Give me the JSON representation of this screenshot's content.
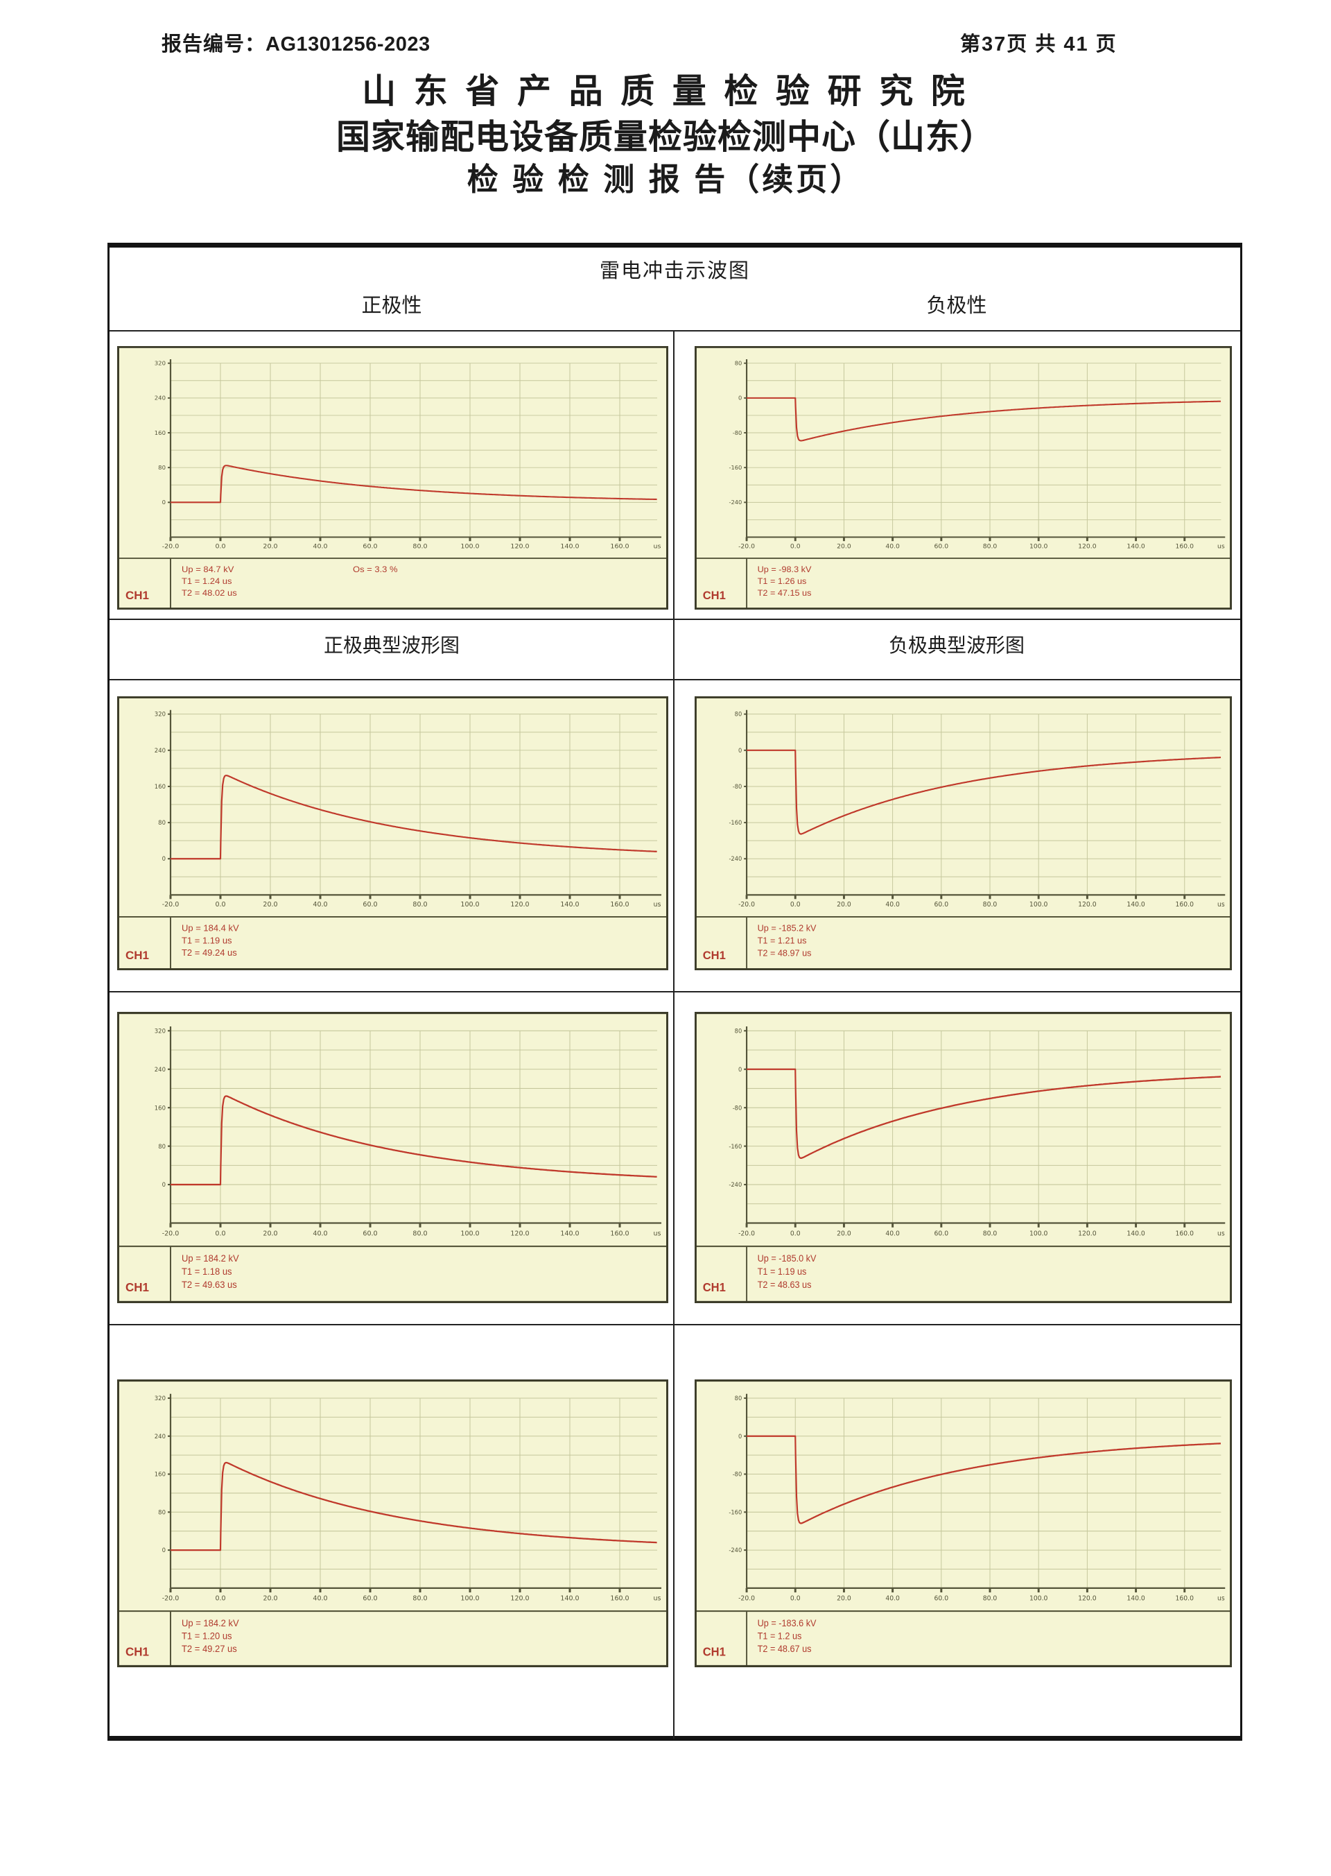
{
  "header": {
    "report_no_label": "报告编号：",
    "report_no": "AG1301256-2023",
    "page_info": "第37页  共 41 页"
  },
  "title": {
    "line1": "山 东 省 产 品 质 量 检 验 研 究 院",
    "line2": "国家输配电设备质量检验检测中心（山东）",
    "line3": "检 验 检 测 报 告（续页）"
  },
  "table": {
    "title": "雷电冲击示波图",
    "col_positive": "正极性",
    "col_negative": "负极性",
    "label_positive_typical": "正极典型波形图",
    "label_negative_typical": "负极典型波形图"
  },
  "axis": {
    "x_ticks": [
      "-20.0",
      "0.0",
      "20.0",
      "40.0",
      "60.0",
      "80.0",
      "100.0",
      "120.0",
      "140.0",
      "160.0"
    ],
    "x_unit": "us",
    "y_ticks_positive": [
      "320",
      "240",
      "160",
      "80",
      "0"
    ],
    "y_ticks_negative": [
      "80",
      "0",
      "-80",
      "-160",
      "-240"
    ]
  },
  "colors": {
    "waveform": "#c0392b",
    "panel_bg": "#f5f5d4",
    "grid": "#c5c79c",
    "axis": "#55553a",
    "frame": "#3d3d2a",
    "info_text": "#b03a2e"
  },
  "chart_data": {
    "type": "line",
    "note": "eight lightning impulse oscillograms, x axis -20 to 160 us, y grid 40 kV per division"
  },
  "charts": [
    {
      "channel": "CH1",
      "polarity": "positive",
      "up_label": "Up = 84.7 kV",
      "t1_label": "T1 = 1.24 us",
      "t2_label": "T2 = 48.02 us",
      "overshoot_label": "Os = 3.3 %",
      "up_kv": 84.7,
      "t2_us": 48.02
    },
    {
      "channel": "CH1",
      "polarity": "negative",
      "up_label": "Up = -98.3 kV",
      "t1_label": "T1 = 1.26 us",
      "t2_label": "T2 = 47.15 us",
      "overshoot_label": null,
      "up_kv": -98.3,
      "t2_us": 47.15
    },
    {
      "channel": "CH1",
      "polarity": "positive",
      "up_label": "Up = 184.4 kV",
      "t1_label": "T1 = 1.19 us",
      "t2_label": "T2 = 49.24 us",
      "overshoot_label": null,
      "up_kv": 184.4,
      "t2_us": 49.24
    },
    {
      "channel": "CH1",
      "polarity": "negative",
      "up_label": "Up = -185.2 kV",
      "t1_label": "T1 = 1.21 us",
      "t2_label": "T2 = 48.97 us",
      "overshoot_label": null,
      "up_kv": -185.2,
      "t2_us": 48.97
    },
    {
      "channel": "CH1",
      "polarity": "positive",
      "up_label": "Up = 184.2 kV",
      "t1_label": "T1 = 1.18 us",
      "t2_label": "T2 = 49.63 us",
      "overshoot_label": null,
      "up_kv": 184.2,
      "t2_us": 49.63
    },
    {
      "channel": "CH1",
      "polarity": "negative",
      "up_label": "Up = -185.0 kV",
      "t1_label": "T1 = 1.19 us",
      "t2_label": "T2 = 48.63 us",
      "overshoot_label": null,
      "up_kv": -185.0,
      "t2_us": 48.63
    },
    {
      "channel": "CH1",
      "polarity": "positive",
      "up_label": "Up = 184.2 kV",
      "t1_label": "T1 = 1.20 us",
      "t2_label": "T2 = 49.27 us",
      "overshoot_label": null,
      "up_kv": 184.2,
      "t2_us": 49.27
    },
    {
      "channel": "CH1",
      "polarity": "negative",
      "up_label": "Up = -183.6 kV",
      "t1_label": "T1 = 1.2 us",
      "t2_label": "T2 = 48.67 us",
      "overshoot_label": null,
      "up_kv": -183.6,
      "t2_us": 48.67
    }
  ]
}
